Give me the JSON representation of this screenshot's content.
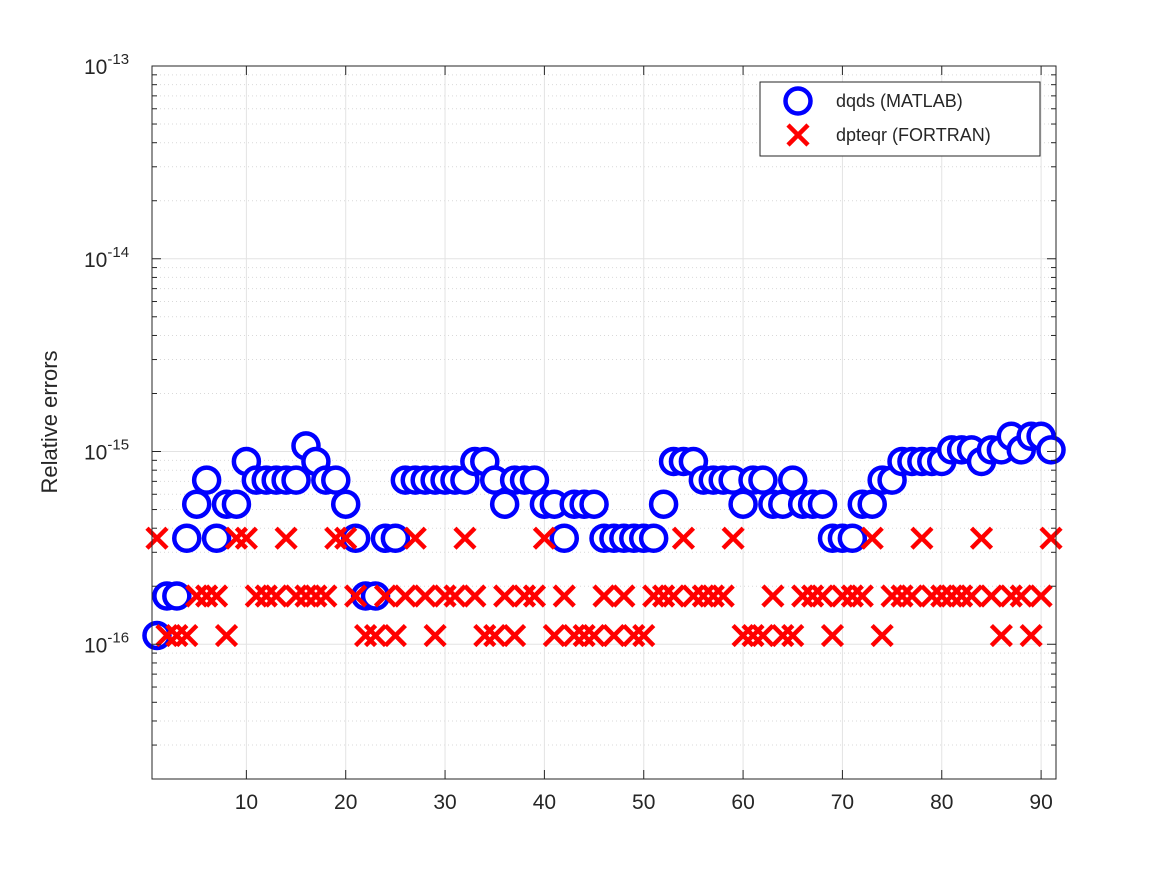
{
  "chart_data": {
    "type": "scatter",
    "ylabel": "Relative errors",
    "xlabel": "",
    "title": "",
    "x_ticks": [
      10,
      20,
      30,
      40,
      50,
      60,
      70,
      80,
      90
    ],
    "xlim": [
      0.5,
      91.5
    ],
    "y_scale": "log",
    "ylim": [
      2e-17,
      1e-13
    ],
    "y_ticks": [
      {
        "exp": -16,
        "base": "10",
        "sup": "-16"
      },
      {
        "exp": -15,
        "base": "10",
        "sup": "-15"
      },
      {
        "exp": -14,
        "base": "10",
        "sup": "-14"
      },
      {
        "exp": -13,
        "base": "10",
        "sup": "-13"
      }
    ],
    "grid": true,
    "legend_position": "top-right",
    "series": [
      {
        "name": "dqds (MATLAB)",
        "marker": "circle",
        "color": "#0000ff",
        "points": [
          [
            1,
            1.11e-16
          ],
          [
            2,
            1.78e-16
          ],
          [
            3,
            1.78e-16
          ],
          [
            4,
            3.55e-16
          ],
          [
            5,
            5.33e-16
          ],
          [
            6,
            7.11e-16
          ],
          [
            7,
            3.55e-16
          ],
          [
            8,
            5.33e-16
          ],
          [
            9,
            5.33e-16
          ],
          [
            10,
            8.88e-16
          ],
          [
            11,
            7.11e-16
          ],
          [
            12,
            7.11e-16
          ],
          [
            13,
            7.11e-16
          ],
          [
            14,
            7.11e-16
          ],
          [
            15,
            7.11e-16
          ],
          [
            16,
            1.07e-15
          ],
          [
            17,
            8.88e-16
          ],
          [
            18,
            7.11e-16
          ],
          [
            19,
            7.11e-16
          ],
          [
            20,
            5.33e-16
          ],
          [
            21,
            3.55e-16
          ],
          [
            22,
            1.78e-16
          ],
          [
            23,
            1.78e-16
          ],
          [
            24,
            3.55e-16
          ],
          [
            25,
            3.55e-16
          ],
          [
            26,
            7.11e-16
          ],
          [
            27,
            7.11e-16
          ],
          [
            28,
            7.11e-16
          ],
          [
            29,
            7.11e-16
          ],
          [
            30,
            7.11e-16
          ],
          [
            31,
            7.11e-16
          ],
          [
            32,
            7.11e-16
          ],
          [
            33,
            8.88e-16
          ],
          [
            34,
            8.88e-16
          ],
          [
            35,
            7.11e-16
          ],
          [
            36,
            5.33e-16
          ],
          [
            37,
            7.11e-16
          ],
          [
            38,
            7.11e-16
          ],
          [
            39,
            7.11e-16
          ],
          [
            40,
            5.33e-16
          ],
          [
            41,
            5.33e-16
          ],
          [
            42,
            3.55e-16
          ],
          [
            43,
            5.33e-16
          ],
          [
            44,
            5.33e-16
          ],
          [
            45,
            5.33e-16
          ],
          [
            46,
            3.55e-16
          ],
          [
            47,
            3.55e-16
          ],
          [
            48,
            3.55e-16
          ],
          [
            49,
            3.55e-16
          ],
          [
            50,
            3.55e-16
          ],
          [
            51,
            3.55e-16
          ],
          [
            52,
            5.33e-16
          ],
          [
            53,
            8.88e-16
          ],
          [
            54,
            8.88e-16
          ],
          [
            55,
            8.88e-16
          ],
          [
            56,
            7.11e-16
          ],
          [
            57,
            7.11e-16
          ],
          [
            58,
            7.11e-16
          ],
          [
            59,
            7.11e-16
          ],
          [
            60,
            5.33e-16
          ],
          [
            61,
            7.11e-16
          ],
          [
            62,
            7.11e-16
          ],
          [
            63,
            5.33e-16
          ],
          [
            64,
            5.33e-16
          ],
          [
            65,
            7.11e-16
          ],
          [
            66,
            5.33e-16
          ],
          [
            67,
            5.33e-16
          ],
          [
            68,
            5.33e-16
          ],
          [
            69,
            3.55e-16
          ],
          [
            70,
            3.55e-16
          ],
          [
            71,
            3.55e-16
          ],
          [
            72,
            5.33e-16
          ],
          [
            73,
            5.33e-16
          ],
          [
            74,
            7.11e-16
          ],
          [
            75,
            7.11e-16
          ],
          [
            76,
            8.88e-16
          ],
          [
            77,
            8.88e-16
          ],
          [
            78,
            8.88e-16
          ],
          [
            79,
            8.88e-16
          ],
          [
            80,
            8.88e-16
          ],
          [
            81,
            1.02e-15
          ],
          [
            82,
            1.02e-15
          ],
          [
            83,
            1.02e-15
          ],
          [
            84,
            8.88e-16
          ],
          [
            85,
            1.02e-15
          ],
          [
            86,
            1.02e-15
          ],
          [
            87,
            1.2e-15
          ],
          [
            88,
            1.02e-15
          ],
          [
            89,
            1.2e-15
          ],
          [
            90,
            1.2e-15
          ],
          [
            91,
            1.02e-15
          ]
        ]
      },
      {
        "name": "dpteqr (FORTRAN)",
        "marker": "x",
        "color": "#ff0000",
        "points": [
          [
            1,
            3.55e-16
          ],
          [
            2,
            1.11e-16
          ],
          [
            3,
            1.11e-16
          ],
          [
            4,
            1.11e-16
          ],
          [
            5,
            1.78e-16
          ],
          [
            6,
            1.78e-16
          ],
          [
            7,
            1.78e-16
          ],
          [
            8,
            1.11e-16
          ],
          [
            9,
            3.55e-16
          ],
          [
            10,
            3.55e-16
          ],
          [
            11,
            1.78e-16
          ],
          [
            12,
            1.78e-16
          ],
          [
            13,
            1.78e-16
          ],
          [
            14,
            3.55e-16
          ],
          [
            15,
            1.78e-16
          ],
          [
            16,
            1.78e-16
          ],
          [
            17,
            1.78e-16
          ],
          [
            18,
            1.78e-16
          ],
          [
            19,
            3.55e-16
          ],
          [
            20,
            3.55e-16
          ],
          [
            21,
            1.78e-16
          ],
          [
            22,
            1.11e-16
          ],
          [
            23,
            1.11e-16
          ],
          [
            24,
            1.78e-16
          ],
          [
            25,
            1.11e-16
          ],
          [
            26,
            1.78e-16
          ],
          [
            27,
            3.55e-16
          ],
          [
            28,
            1.78e-16
          ],
          [
            29,
            1.11e-16
          ],
          [
            30,
            1.78e-16
          ],
          [
            31,
            1.78e-16
          ],
          [
            32,
            3.55e-16
          ],
          [
            33,
            1.78e-16
          ],
          [
            34,
            1.11e-16
          ],
          [
            35,
            1.11e-16
          ],
          [
            36,
            1.78e-16
          ],
          [
            37,
            1.11e-16
          ],
          [
            38,
            1.78e-16
          ],
          [
            39,
            1.78e-16
          ],
          [
            40,
            3.55e-16
          ],
          [
            41,
            1.11e-16
          ],
          [
            42,
            1.78e-16
          ],
          [
            43,
            1.11e-16
          ],
          [
            44,
            1.11e-16
          ],
          [
            45,
            1.11e-16
          ],
          [
            46,
            1.78e-16
          ],
          [
            47,
            1.11e-16
          ],
          [
            48,
            1.78e-16
          ],
          [
            49,
            1.11e-16
          ],
          [
            50,
            1.11e-16
          ],
          [
            51,
            1.78e-16
          ],
          [
            52,
            1.78e-16
          ],
          [
            53,
            1.78e-16
          ],
          [
            54,
            3.55e-16
          ],
          [
            55,
            1.78e-16
          ],
          [
            56,
            1.78e-16
          ],
          [
            57,
            1.78e-16
          ],
          [
            58,
            1.78e-16
          ],
          [
            59,
            3.55e-16
          ],
          [
            60,
            1.11e-16
          ],
          [
            61,
            1.11e-16
          ],
          [
            62,
            1.11e-16
          ],
          [
            63,
            1.78e-16
          ],
          [
            64,
            1.11e-16
          ],
          [
            65,
            1.11e-16
          ],
          [
            66,
            1.78e-16
          ],
          [
            67,
            1.78e-16
          ],
          [
            68,
            1.78e-16
          ],
          [
            69,
            1.11e-16
          ],
          [
            70,
            1.78e-16
          ],
          [
            71,
            1.78e-16
          ],
          [
            72,
            1.78e-16
          ],
          [
            73,
            3.55e-16
          ],
          [
            74,
            1.11e-16
          ],
          [
            75,
            1.78e-16
          ],
          [
            76,
            1.78e-16
          ],
          [
            77,
            1.78e-16
          ],
          [
            78,
            3.55e-16
          ],
          [
            79,
            1.78e-16
          ],
          [
            80,
            1.78e-16
          ],
          [
            81,
            1.78e-16
          ],
          [
            82,
            1.78e-16
          ],
          [
            83,
            1.78e-16
          ],
          [
            84,
            3.55e-16
          ],
          [
            85,
            1.78e-16
          ],
          [
            86,
            1.11e-16
          ],
          [
            87,
            1.78e-16
          ],
          [
            88,
            1.78e-16
          ],
          [
            89,
            1.11e-16
          ],
          [
            90,
            1.78e-16
          ],
          [
            91,
            3.55e-16
          ]
        ]
      }
    ]
  }
}
